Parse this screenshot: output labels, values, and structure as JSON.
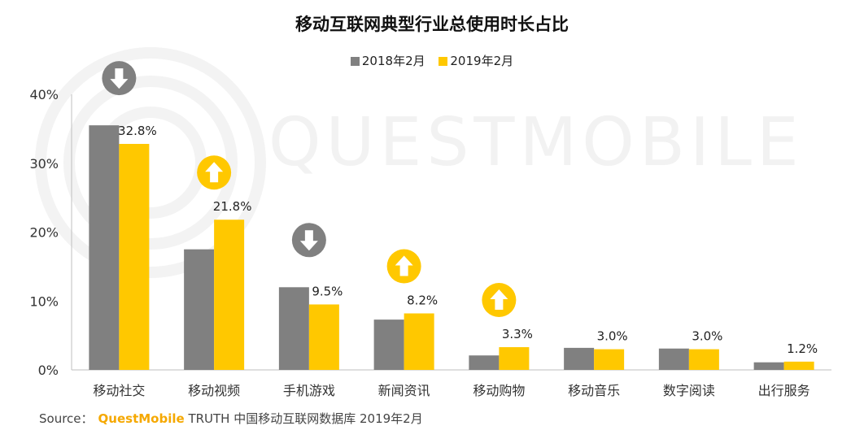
{
  "title": "移动互联网典型行业总使用时长占比",
  "watermark": "QUESTMOBILE",
  "legend": [
    {
      "label": "2018年2月",
      "color": "#808080"
    },
    {
      "label": "2019年2月",
      "color": "#ffc800"
    }
  ],
  "source": {
    "prefix": "Source：",
    "brand": "QuestMobile",
    "rest": "TRUTH 中国移动互联网数据库 2019年2月"
  },
  "chart_data": {
    "type": "bar",
    "categories": [
      "移动社交",
      "移动视频",
      "手机游戏",
      "新闻资讯",
      "移动购物",
      "移动音乐",
      "数字阅读",
      "出行服务"
    ],
    "series": [
      {
        "name": "2018年2月",
        "color": "#808080",
        "values": [
          35.5,
          17.5,
          12.0,
          7.3,
          2.1,
          3.2,
          3.1,
          1.1
        ]
      },
      {
        "name": "2019年2月",
        "color": "#ffc800",
        "values": [
          32.8,
          21.8,
          9.5,
          8.2,
          3.3,
          3.0,
          3.0,
          1.2
        ]
      }
    ],
    "data_labels": [
      "32.8%",
      "21.8%",
      "9.5%",
      "8.2%",
      "3.3%",
      "3.0%",
      "3.0%",
      "1.2%"
    ],
    "trend_icons": [
      {
        "category": "移动社交",
        "direction": "down",
        "color": "#808080",
        "icon": "down-arrow-icon"
      },
      {
        "category": "移动视频",
        "direction": "up",
        "color": "#ffc800",
        "icon": "up-arrow-icon"
      },
      {
        "category": "手机游戏",
        "direction": "down",
        "color": "#808080",
        "icon": "down-arrow-icon"
      },
      {
        "category": "新闻资讯",
        "direction": "up",
        "color": "#ffc800",
        "icon": "up-arrow-icon"
      },
      {
        "category": "移动购物",
        "direction": "up",
        "color": "#ffc800",
        "icon": "up-arrow-icon"
      }
    ],
    "yticks": [
      "0%",
      "10%",
      "20%",
      "30%",
      "40%"
    ],
    "ylim": [
      0,
      40
    ],
    "grid": false
  }
}
